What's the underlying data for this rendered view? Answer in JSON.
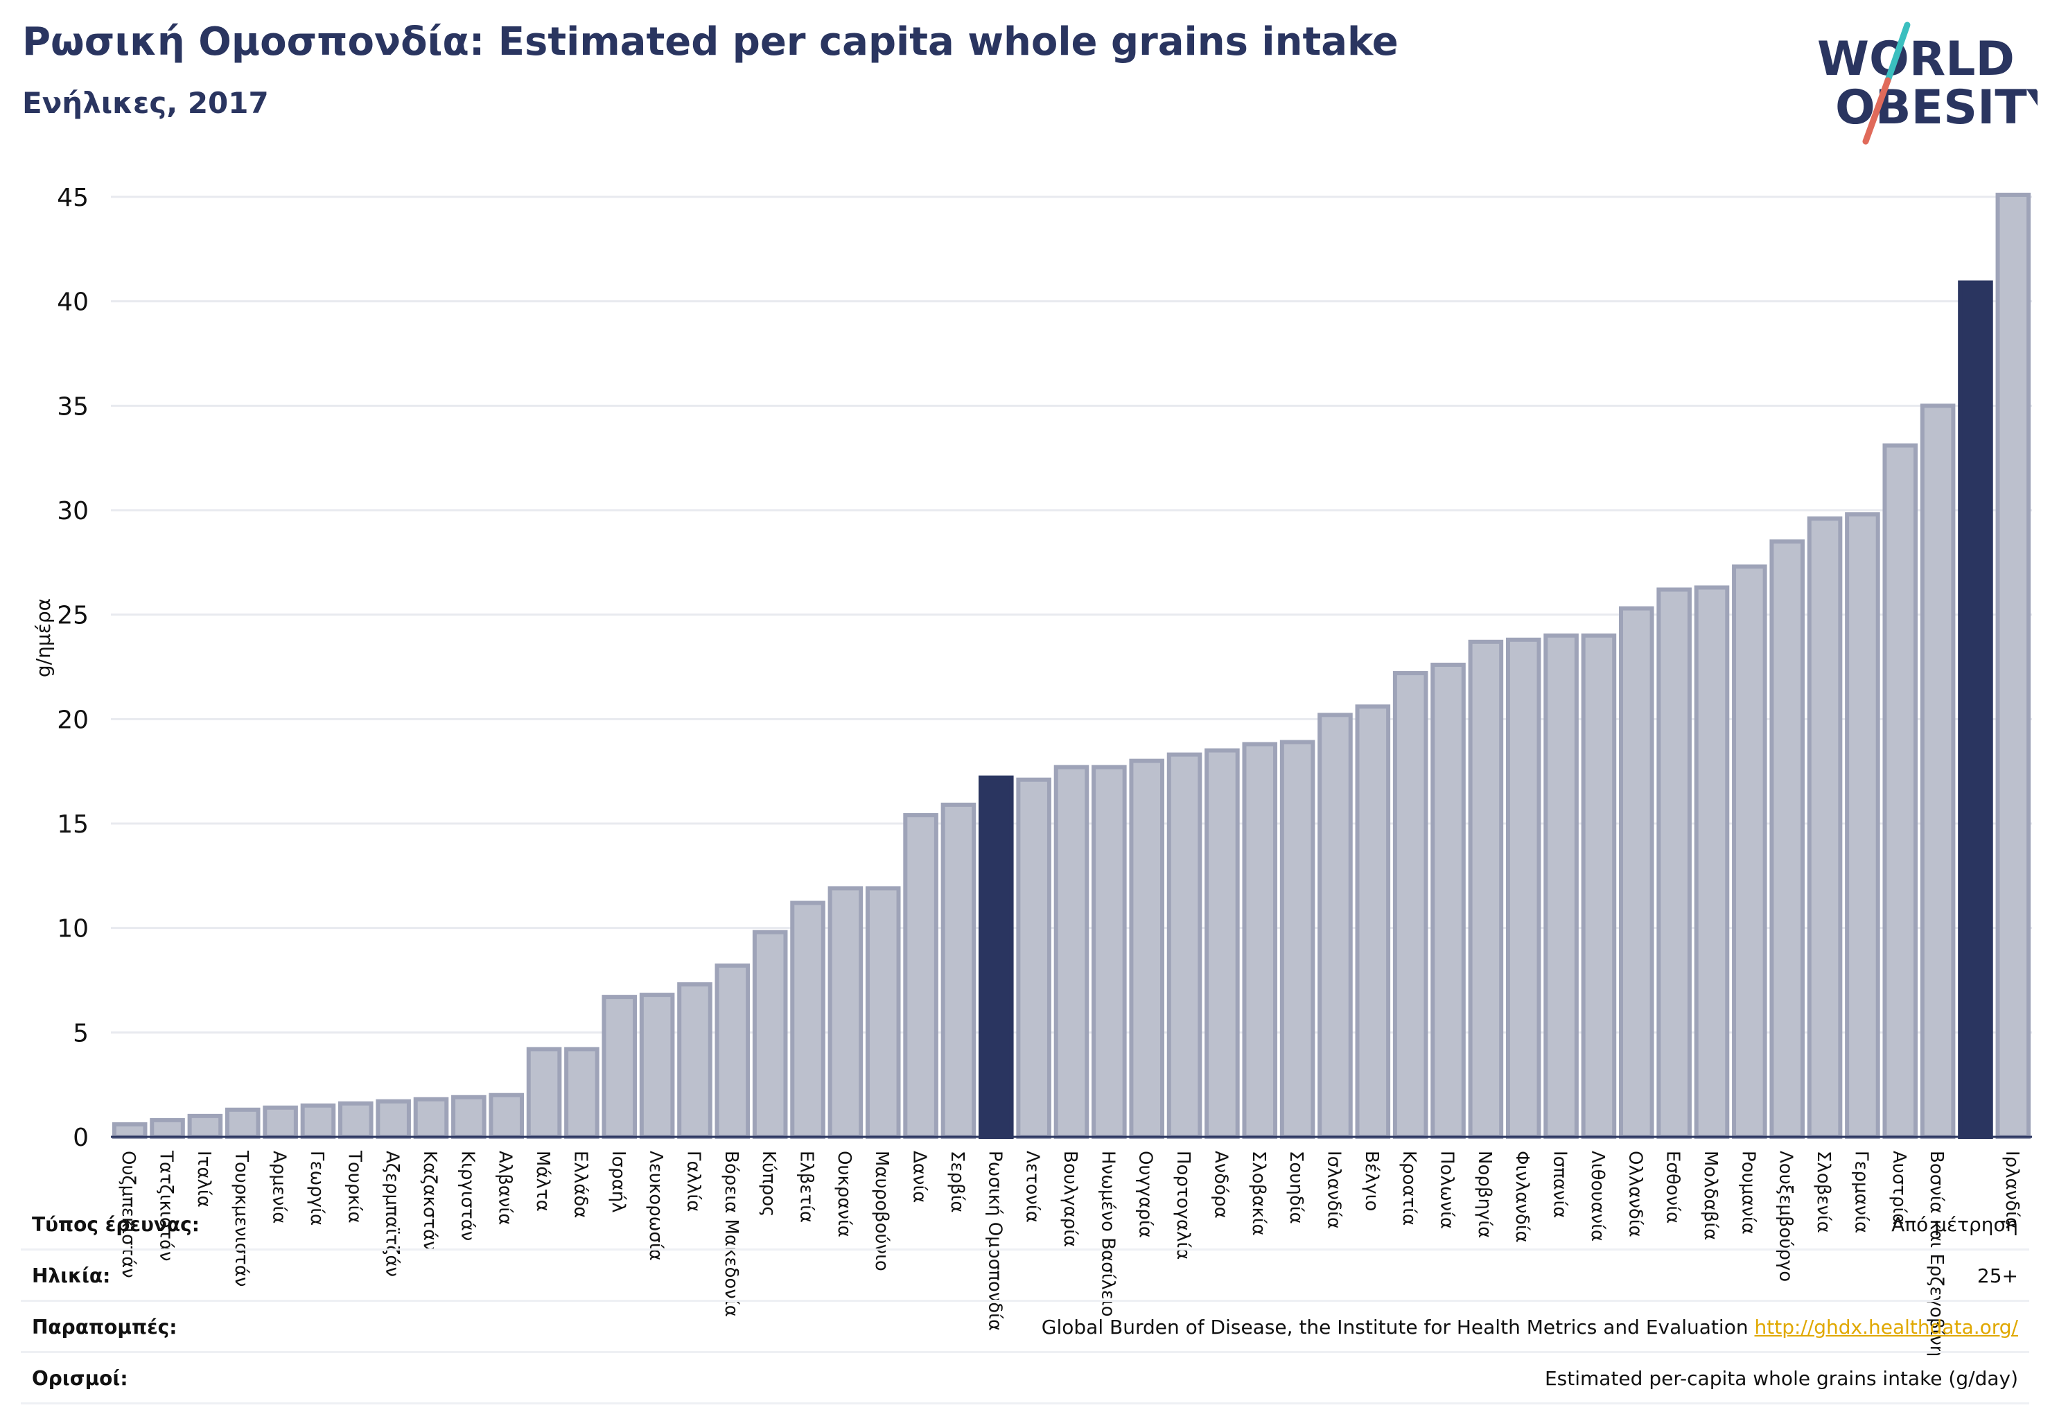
{
  "header": {
    "title": "Ρωσική Ομοσπονδία: Estimated per capita whole grains intake",
    "subtitle": "Ενήλικες, 2017"
  },
  "logo": {
    "line1": "WORLD",
    "line2": "OBESITY"
  },
  "colors": {
    "bar_default": "#bcc0cd",
    "bar_stroke": "#9ea3b8",
    "bar_highlight": "#2a3560",
    "grid": "#e8eaef",
    "title": "#2a3560",
    "link": "#e0a800",
    "logo_teal": "#3bbfbf",
    "logo_red": "#e06a5a"
  },
  "chart_data": {
    "type": "bar",
    "ylabel": "g/ημέρα",
    "xlabel": "",
    "ylim": [
      0,
      45
    ],
    "yticks": [
      0,
      5,
      10,
      15,
      20,
      25,
      30,
      35,
      40,
      45
    ],
    "grid": true,
    "categories": [
      "Ουζμπεκιστάν",
      "Τατζικιστάν",
      "Ιταλία",
      "Τουρκμενιστάν",
      "Αρμενία",
      "Γεωργία",
      "Τουρκία",
      "Αζερμπαϊτζάν",
      "Καζακστάν",
      "Κιργιστάν",
      "Αλβανία",
      "Μάλτα",
      "Ελλάδα",
      "Ισραήλ",
      "Λευκορωσία",
      "Γαλλία",
      "Βόρεια Μακεδονία",
      "Κύπρος",
      "Ελβετία",
      "Ουκρανία",
      "Μαυροβούνιο",
      "Δανία",
      "Σερβία",
      "Ρωσική Ομοσπονδία",
      "Λετονία",
      "Βουλγαρία",
      "Ηνωμένο Βασίλειο",
      "Ουγγαρία",
      "Πορτογαλία",
      "Ανδόρα",
      "Σλοβακία",
      "Σουηδία",
      "Ισλανδία",
      "Βέλγιο",
      "Κροατία",
      "Πολωνία",
      "Νορβηγία",
      "Φινλανδία",
      "Ισπανία",
      "Λιθουανία",
      "Ολλανδία",
      "Εσθονία",
      "Μολδαβία",
      "Ρουμανία",
      "Λουξεμβούργο",
      "Σλοβενία",
      "Γερμανία",
      "Αυστρία",
      "Βοσνία και Ερζεγοβίνη",
      "Ιρλανδία",
      "Ισλανδία"
    ],
    "tick_labels": [
      "Ουζμπεκιστάν",
      "Τατζικιστάν",
      "Ιταλία",
      "Τουρκμενιστάν",
      "Αρμενία",
      "Γεωργία",
      "Τουρκία",
      "Αζερμπαϊτζάν",
      "Καζακστάν",
      "Κιργιστάν",
      "Αλβανία",
      "Μάλτα",
      "Ελλάδα",
      "Ισραήλ",
      "Λευκορωσία",
      "Γαλλία",
      "Βόρεια Μακεδονία",
      "Κύπρος",
      "Ελβετία",
      "Ουκρανία",
      "Μαυροβούνιο",
      "Δανία",
      "Σερβία",
      "Ρωσική Ομοσπονδία",
      "Λετονία",
      "Βουλγαρία",
      "Ηνωμένο Βασίλειο",
      "Ουγγαρία",
      "Πορτογαλία",
      "Ανδόρα",
      "Σλοβακία",
      "Σουηδία",
      "Ισλανδία",
      "Βέλγιο",
      "Κροατία",
      "Πολωνία",
      "Νορβηγία",
      "Φινλανδία",
      "Ισπανία",
      "Λιθουανία",
      "Ολλανδία",
      "Εσθονία",
      "Μολδαβία",
      "Ρουμανία",
      "Λουξεμβούργο",
      "Σλοβενία",
      "Γερμανία",
      "Αυστρία",
      "Βοσνία και Ερζεγοβίνη",
      "",
      "Ιρλανδία"
    ],
    "values": [
      0.6,
      0.8,
      1.0,
      1.3,
      1.4,
      1.5,
      1.6,
      1.7,
      1.8,
      1.9,
      2.0,
      4.2,
      4.2,
      6.7,
      6.8,
      7.3,
      8.2,
      9.8,
      11.2,
      11.9,
      11.9,
      15.4,
      15.9,
      17.2,
      17.1,
      17.7,
      17.7,
      18.0,
      18.3,
      18.5,
      18.8,
      18.9,
      20.2,
      20.6,
      22.2,
      22.6,
      23.7,
      23.8,
      24.0,
      24.0,
      25.3,
      26.2,
      26.3,
      27.3,
      28.5,
      29.6,
      29.8,
      33.1,
      35.0,
      40.9,
      45.1
    ],
    "highlight": [
      "Ρωσική Ομοσπονδία",
      "Ισλανδία"
    ],
    "highlight_indices": [
      23,
      49
    ]
  },
  "info_table": {
    "rows": [
      {
        "label": "Τύπος έρευνας:",
        "value": "Από μέτρηση"
      },
      {
        "label": "Ηλικία:",
        "value": "25+"
      },
      {
        "label": "Παραπομπές:",
        "value": "Global Burden of Disease, the Institute for Health Metrics and Evaluation",
        "link": "http://ghdx.healthdata.org/"
      },
      {
        "label": "Ορισμοί:",
        "value": "Estimated per-capita whole grains intake (g/day)"
      }
    ]
  }
}
